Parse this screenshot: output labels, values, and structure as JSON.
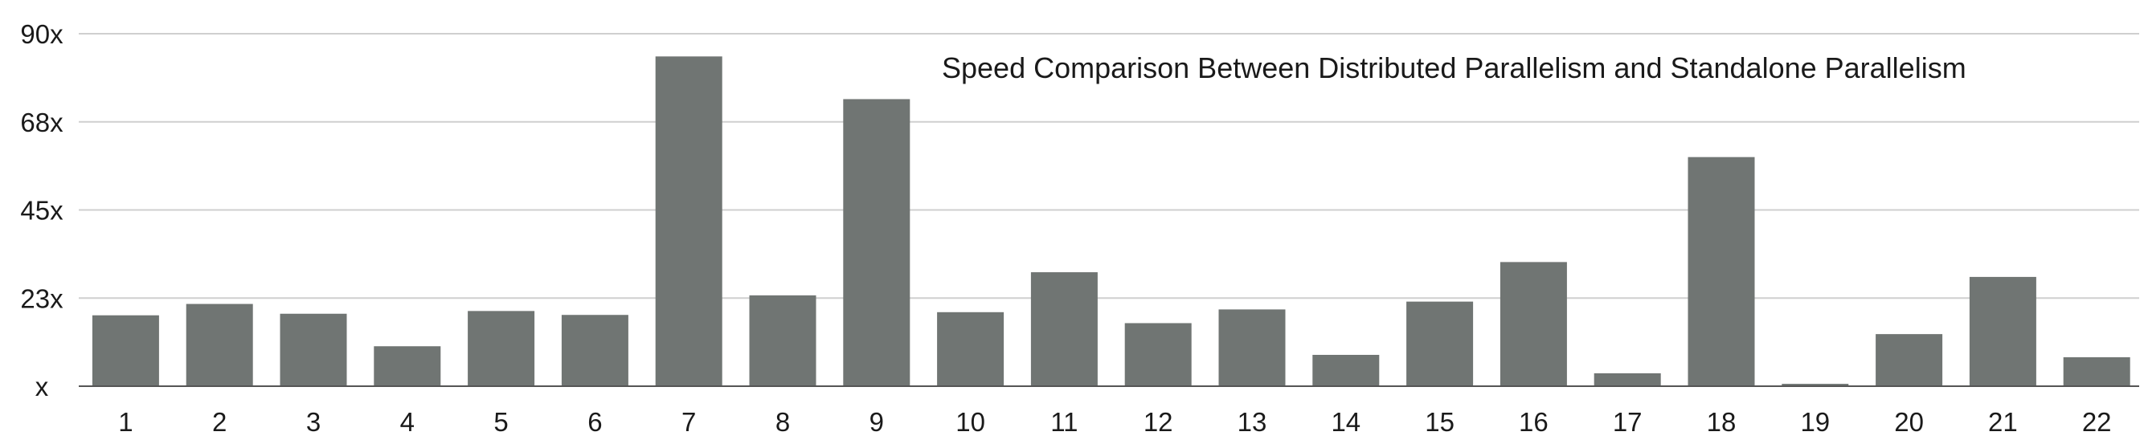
{
  "chart_data": {
    "type": "bar",
    "title": "Speed Comparison Between Distributed Parallelism and Standalone Parallelism",
    "xlabel": "",
    "ylabel": "",
    "categories": [
      "1",
      "2",
      "3",
      "4",
      "5",
      "6",
      "7",
      "8",
      "9",
      "10",
      "11",
      "12",
      "13",
      "14",
      "15",
      "16",
      "17",
      "18",
      "19",
      "20",
      "21",
      "22"
    ],
    "values": [
      18.1,
      21.0,
      18.5,
      10.2,
      19.2,
      18.2,
      84.2,
      23.2,
      73.3,
      18.9,
      29.1,
      16.1,
      19.6,
      8.0,
      21.6,
      31.7,
      3.3,
      58.5,
      0.6,
      13.3,
      27.9,
      7.4
    ],
    "y_ticks": [
      "x",
      "23x",
      "45x",
      "68x",
      "90x"
    ],
    "y_tick_values": [
      0,
      22.5,
      45,
      67.5,
      90
    ],
    "ylim": [
      0,
      90
    ],
    "grid": "horizontal",
    "legend": "none",
    "colors": {
      "bar": "#707573",
      "grid": "#cfcfcf",
      "baseline": "#555555",
      "text": "#1a1a1a"
    }
  }
}
